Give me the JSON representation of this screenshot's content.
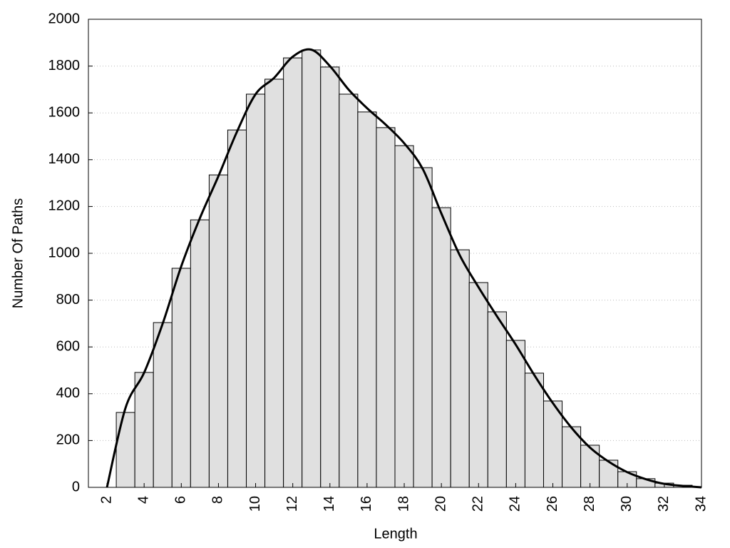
{
  "chart_data": {
    "type": "histogram",
    "x_label": "Length",
    "y_label": "Number Of Paths",
    "bins": [
      2.5,
      3.5,
      4.5,
      5.5,
      6.5,
      7.5,
      8.5,
      9.5,
      10.5,
      11.5,
      12.5,
      13.5,
      14.5,
      15.5,
      16.5,
      17.5,
      18.5,
      19.5,
      20.5,
      21.5,
      22.5,
      23.5,
      24.5,
      25.5,
      26.5,
      27.5,
      28.5,
      29.5,
      30.5,
      31.5,
      32.5,
      33.5
    ],
    "values": [
      320,
      491,
      704,
      936,
      1143,
      1335,
      1527,
      1680,
      1744,
      1835,
      1869,
      1796,
      1680,
      1604,
      1537,
      1460,
      1366,
      1195,
      1015,
      875,
      750,
      628,
      488,
      369,
      259,
      180,
      116,
      67,
      37,
      18,
      9
    ],
    "color": "#e0e0e0",
    "curve": {
      "color": "#000000",
      "x": [
        2,
        3,
        4,
        5,
        6,
        7,
        8,
        9,
        10,
        11,
        12,
        13,
        14,
        15,
        16,
        17,
        18,
        19,
        20,
        21,
        22,
        23,
        24,
        25,
        26,
        27,
        28,
        29,
        30,
        31,
        32,
        33,
        34
      ],
      "values": [
        0,
        340,
        490,
        700,
        945,
        1150,
        1330,
        1520,
        1680,
        1750,
        1840,
        1870,
        1800,
        1700,
        1620,
        1550,
        1470,
        1360,
        1170,
        990,
        855,
        730,
        610,
        480,
        360,
        255,
        170,
        110,
        65,
        35,
        15,
        6,
        0
      ]
    },
    "xlim": [
      1,
      34
    ],
    "ylim": [
      0,
      2000
    ],
    "xticks": [
      2,
      4,
      6,
      8,
      10,
      12,
      14,
      16,
      18,
      20,
      22,
      24,
      26,
      28,
      30,
      32,
      34
    ],
    "yticks": [
      0,
      200,
      400,
      600,
      800,
      1000,
      1200,
      1400,
      1600,
      1800,
      2000
    ],
    "grid": true
  }
}
